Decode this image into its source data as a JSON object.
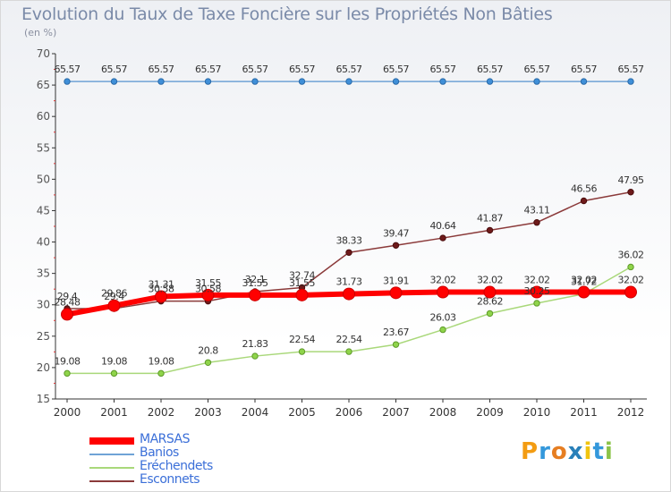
{
  "chart_data": {
    "type": "line",
    "title": "Evolution du Taux de Taxe Foncière sur les Propriétés Non Bâties",
    "ylabel": "(en %)",
    "xlabel": "",
    "ylim": [
      15,
      70
    ],
    "yticks": [
      15,
      20,
      25,
      30,
      35,
      40,
      45,
      50,
      55,
      60,
      65,
      70
    ],
    "categories": [
      "2000",
      "2001",
      "2002",
      "2003",
      "2004",
      "2005",
      "2006",
      "2007",
      "2008",
      "2009",
      "2010",
      "2011",
      "2012"
    ],
    "series": [
      {
        "name": "MARSAS",
        "color": "#ff0000",
        "values": [
          28.48,
          29.86,
          31.31,
          31.55,
          31.55,
          31.55,
          31.73,
          31.91,
          32.02,
          32.02,
          32.02,
          32.02,
          32.02
        ],
        "labels": [
          "28.48",
          "29.86",
          "31.31",
          "31.55",
          "31.55",
          "31.55",
          "31.73",
          "31.91",
          "32.02",
          "32.02",
          "32.02",
          "32.02",
          "32.02"
        ]
      },
      {
        "name": "Banios",
        "color": "#6fa3d6",
        "values": [
          65.57,
          65.57,
          65.57,
          65.57,
          65.57,
          65.57,
          65.57,
          65.57,
          65.57,
          65.57,
          65.57,
          65.57,
          65.57
        ],
        "labels": [
          "65.57",
          "65.57",
          "65.57",
          "65.57",
          "65.57",
          "65.57",
          "65.57",
          "65.57",
          "65.57",
          "65.57",
          "65.57",
          "65.57",
          "65.57"
        ]
      },
      {
        "name": "Eréchendets",
        "color": "#a9d87a",
        "values": [
          19.08,
          19.08,
          19.08,
          20.8,
          21.83,
          22.54,
          22.54,
          23.67,
          26.03,
          28.62,
          30.25,
          31.72,
          36.02
        ],
        "labels": [
          "19.08",
          "19.08",
          "19.08",
          "20.8",
          "21.83",
          "22.54",
          "22.54",
          "23.67",
          "26.03",
          "28.62",
          "30.25",
          "31.72",
          "36.02"
        ]
      },
      {
        "name": "Esconnets",
        "color": "#8b3a3a",
        "values": [
          29.4,
          29.4,
          30.58,
          30.58,
          32.1,
          32.74,
          38.33,
          39.47,
          40.64,
          41.87,
          43.11,
          46.56,
          47.95
        ],
        "labels": [
          "29.4",
          "29.4",
          "30.58",
          "30.58",
          "32.1",
          "32.74",
          "38.33",
          "39.47",
          "40.64",
          "41.87",
          "43.11",
          "46.56",
          "47.95"
        ]
      }
    ],
    "legend_position": "bottom-left"
  },
  "logo": {
    "letters": [
      "P",
      "r",
      "o",
      "x",
      "i",
      "t",
      "i"
    ],
    "colors": [
      "#f39c12",
      "#3498db",
      "#e67e22",
      "#2980b9",
      "#f1c40f",
      "#3498db",
      "#8bc34a"
    ]
  }
}
